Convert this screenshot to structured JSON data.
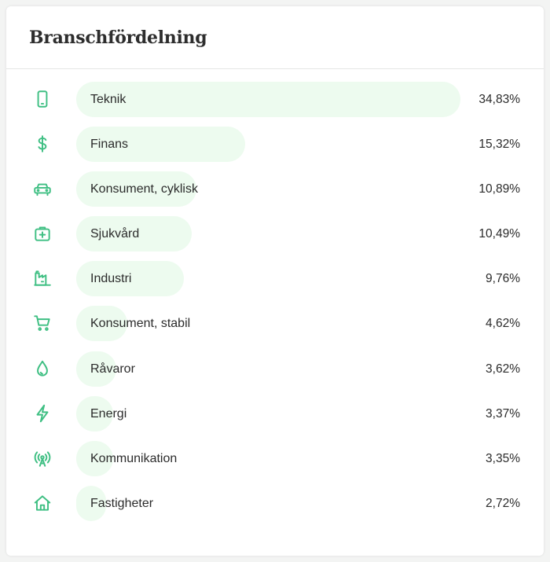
{
  "card": {
    "title": "Branschfördelning"
  },
  "colors": {
    "accent": "#3fbf83",
    "bar_fill": "#edfbef",
    "text": "#2b2b2b"
  },
  "sectors": [
    {
      "label": "Teknik",
      "value": "34,83%",
      "percent": 34.83,
      "icon": "smartphone-icon"
    },
    {
      "label": "Finans",
      "value": "15,32%",
      "percent": 15.32,
      "icon": "dollar-icon"
    },
    {
      "label": "Konsument, cyklisk",
      "value": "10,89%",
      "percent": 10.89,
      "icon": "car-icon"
    },
    {
      "label": "Sjukvård",
      "value": "10,49%",
      "percent": 10.49,
      "icon": "medical-kit-icon"
    },
    {
      "label": "Industri",
      "value": "9,76%",
      "percent": 9.76,
      "icon": "factory-icon"
    },
    {
      "label": "Konsument, stabil",
      "value": "4,62%",
      "percent": 4.62,
      "icon": "shopping-cart-icon"
    },
    {
      "label": "Råvaror",
      "value": "3,62%",
      "percent": 3.62,
      "icon": "droplet-icon"
    },
    {
      "label": "Energi",
      "value": "3,37%",
      "percent": 3.37,
      "icon": "lightning-icon"
    },
    {
      "label": "Kommunikation",
      "value": "3,35%",
      "percent": 3.35,
      "icon": "broadcast-icon"
    },
    {
      "label": "Fastigheter",
      "value": "2,72%",
      "percent": 2.72,
      "icon": "house-icon"
    }
  ]
}
